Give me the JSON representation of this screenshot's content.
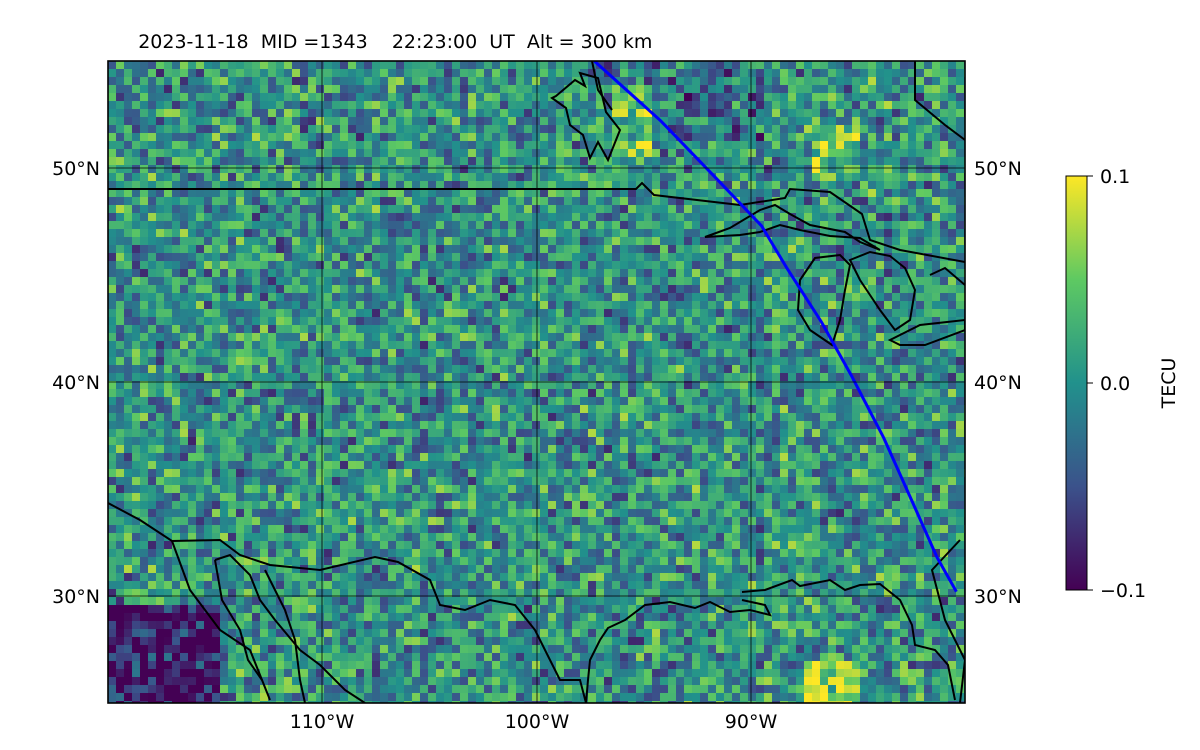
{
  "title": {
    "date": "2023-11-18",
    "mid": "MID =1343",
    "time": "22:23:00  UT",
    "alt": "Alt = 300 km"
  },
  "map": {
    "lon_range": [
      -120,
      -80
    ],
    "lat_range": [
      25,
      55
    ],
    "lon_ticks": [
      -110,
      -100,
      -90
    ],
    "lat_ticks": [
      30,
      40,
      50
    ],
    "lon_tick_labels": [
      "110°W",
      "100°W",
      "90°W"
    ],
    "lat_tick_labels_left": [
      "30°N",
      "40°N",
      "50°N"
    ],
    "lat_tick_labels_right": [
      "30°N",
      "40°N",
      "50°N"
    ],
    "gridlines": true,
    "overlay_track_color": "#0000ff",
    "coastline_color": "#000000"
  },
  "colorbar": {
    "label": "TECU",
    "min": -0.1,
    "max": 0.1,
    "tick_labels": [
      "0.1",
      "0.0",
      "−0.1"
    ],
    "colormap": "viridis",
    "colors": [
      "#440154",
      "#3b528b",
      "#21918c",
      "#5ec962",
      "#fde725"
    ]
  },
  "chart_data": {
    "type": "heatmap",
    "title": "2023-11-18  MID =1343    22:23:00  UT  Alt = 300 km",
    "colorbar_label": "TECU",
    "value_range": [
      -0.1,
      0.1
    ],
    "x_ticks": [
      "110°W",
      "100°W",
      "90°W"
    ],
    "y_ticks": [
      "30°N",
      "40°N",
      "50°N"
    ],
    "track_points_lonlat": [
      [
        -97.3,
        55.0
      ],
      [
        -94.2,
        52.2
      ],
      [
        -91.5,
        49.4
      ],
      [
        -89.5,
        47.3
      ],
      [
        -88.3,
        45.3
      ],
      [
        -86.7,
        42.8
      ],
      [
        -85.3,
        40.3
      ],
      [
        -83.8,
        37.4
      ],
      [
        -82.5,
        34.5
      ],
      [
        -81.3,
        31.8
      ],
      [
        -80.4,
        30.2
      ]
    ]
  }
}
